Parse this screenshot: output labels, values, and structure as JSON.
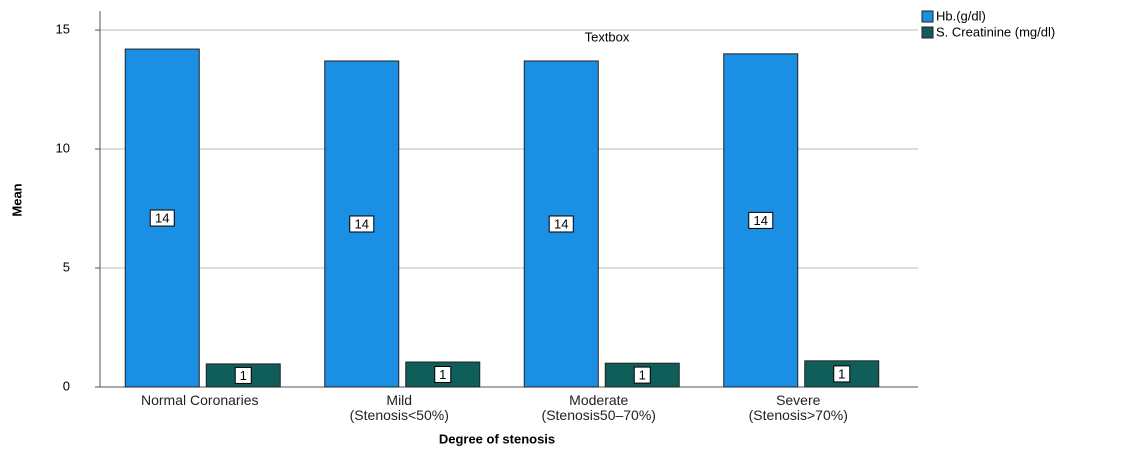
{
  "chart_data": {
    "type": "bar",
    "categories": [
      "Normal Coronaries",
      "Mild\n(Stenosis<50%)",
      "Moderate\n(Stenosis50–70%)",
      "Severe\n(Stenosis>70%)"
    ],
    "series": [
      {
        "name": "Hb.(g/dl)",
        "color": "#1a8fe3",
        "values": [
          14.2,
          13.7,
          13.7,
          14.0
        ],
        "value_labels": [
          "14",
          "14",
          "14",
          "14"
        ]
      },
      {
        "name": "S. Creatinine (mg/dl)",
        "color": "#0f5e5a",
        "values": [
          0.97,
          1.05,
          1.0,
          1.1
        ],
        "value_labels": [
          "1",
          "1",
          "1",
          "1"
        ]
      }
    ],
    "ylim": [
      0,
      15.8
    ],
    "yticks": [
      0,
      5,
      10,
      15
    ],
    "grid": true,
    "x_label": "Degree of stenosis",
    "y_label": "Mean",
    "annotation": "Textbox",
    "legend": "top-right"
  }
}
